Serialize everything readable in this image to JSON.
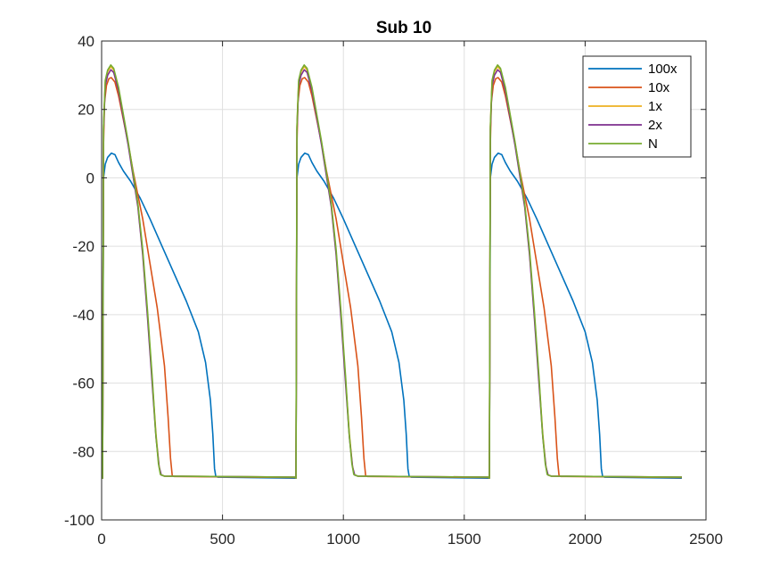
{
  "chart_data": {
    "type": "line",
    "title": "Sub 10",
    "xlabel": "",
    "ylabel": "",
    "xlim": [
      0,
      2500
    ],
    "ylim": [
      -100,
      40
    ],
    "xticks": [
      0,
      500,
      1000,
      1500,
      2000,
      2500
    ],
    "yticks": [
      -100,
      -80,
      -60,
      -40,
      -20,
      0,
      20,
      40
    ],
    "grid": true,
    "legend_position": "top-right",
    "cycle_length": 800,
    "cycles": 3,
    "x_end": 2400,
    "series": [
      {
        "name": "100x",
        "color": "#0072BD",
        "cycle_points": [
          [
            0,
            -87.8
          ],
          [
            4,
            -87.8
          ],
          [
            8,
            0
          ],
          [
            15,
            4
          ],
          [
            25,
            6
          ],
          [
            40,
            7.2
          ],
          [
            55,
            6.8
          ],
          [
            70,
            4.5
          ],
          [
            90,
            2
          ],
          [
            120,
            -1
          ],
          [
            160,
            -6
          ],
          [
            200,
            -12
          ],
          [
            250,
            -20
          ],
          [
            300,
            -28
          ],
          [
            350,
            -36
          ],
          [
            400,
            -45
          ],
          [
            430,
            -54
          ],
          [
            450,
            -65
          ],
          [
            460,
            -75
          ],
          [
            467,
            -85
          ],
          [
            472,
            -87.2
          ],
          [
            480,
            -87.5
          ],
          [
            800,
            -87.8
          ]
        ]
      },
      {
        "name": "10x",
        "color": "#D95319",
        "cycle_points": [
          [
            0,
            -87.8
          ],
          [
            4,
            -87.8
          ],
          [
            8,
            10
          ],
          [
            12,
            22
          ],
          [
            20,
            27
          ],
          [
            30,
            29
          ],
          [
            40,
            29.3
          ],
          [
            55,
            28
          ],
          [
            70,
            24
          ],
          [
            90,
            17
          ],
          [
            110,
            10
          ],
          [
            130,
            2
          ],
          [
            150,
            -5
          ],
          [
            170,
            -12
          ],
          [
            200,
            -25
          ],
          [
            230,
            -38
          ],
          [
            260,
            -55
          ],
          [
            275,
            -70
          ],
          [
            285,
            -82
          ],
          [
            292,
            -87
          ],
          [
            300,
            -87.3
          ],
          [
            800,
            -87.6
          ]
        ]
      },
      {
        "name": "1x",
        "color": "#EDB120",
        "cycle_points": [
          [
            0,
            -87.8
          ],
          [
            4,
            -87.8
          ],
          [
            8,
            15
          ],
          [
            15,
            28
          ],
          [
            25,
            31
          ],
          [
            38,
            32.6
          ],
          [
            50,
            31.5
          ],
          [
            70,
            26
          ],
          [
            90,
            18
          ],
          [
            110,
            10
          ],
          [
            130,
            1
          ],
          [
            150,
            -8
          ],
          [
            170,
            -22
          ],
          [
            190,
            -40
          ],
          [
            210,
            -60
          ],
          [
            225,
            -75
          ],
          [
            237,
            -84
          ],
          [
            245,
            -86.8
          ],
          [
            260,
            -87.2
          ],
          [
            800,
            -87.5
          ]
        ]
      },
      {
        "name": "2x",
        "color": "#7E2F8E",
        "cycle_points": [
          [
            0,
            -87.8
          ],
          [
            4,
            -87.8
          ],
          [
            8,
            14
          ],
          [
            15,
            27
          ],
          [
            25,
            30
          ],
          [
            38,
            31.6
          ],
          [
            50,
            30.8
          ],
          [
            70,
            25.5
          ],
          [
            90,
            17.5
          ],
          [
            110,
            9.5
          ],
          [
            130,
            0.5
          ],
          [
            150,
            -8.5
          ],
          [
            170,
            -22.5
          ],
          [
            190,
            -41
          ],
          [
            210,
            -61
          ],
          [
            225,
            -76
          ],
          [
            238,
            -84.5
          ],
          [
            247,
            -86.9
          ],
          [
            260,
            -87.2
          ],
          [
            800,
            -87.5
          ]
        ]
      },
      {
        "name": "N",
        "color": "#77AC30",
        "cycle_points": [
          [
            0,
            -87.8
          ],
          [
            4,
            -87.8
          ],
          [
            8,
            15
          ],
          [
            15,
            28.5
          ],
          [
            25,
            31.5
          ],
          [
            38,
            33
          ],
          [
            50,
            32
          ],
          [
            70,
            26.5
          ],
          [
            90,
            18.5
          ],
          [
            110,
            10.5
          ],
          [
            130,
            1.5
          ],
          [
            150,
            -7.5
          ],
          [
            170,
            -21
          ],
          [
            190,
            -39
          ],
          [
            210,
            -59
          ],
          [
            223,
            -74
          ],
          [
            235,
            -83.5
          ],
          [
            243,
            -86.7
          ],
          [
            258,
            -87.2
          ],
          [
            800,
            -87.5
          ]
        ]
      }
    ]
  }
}
